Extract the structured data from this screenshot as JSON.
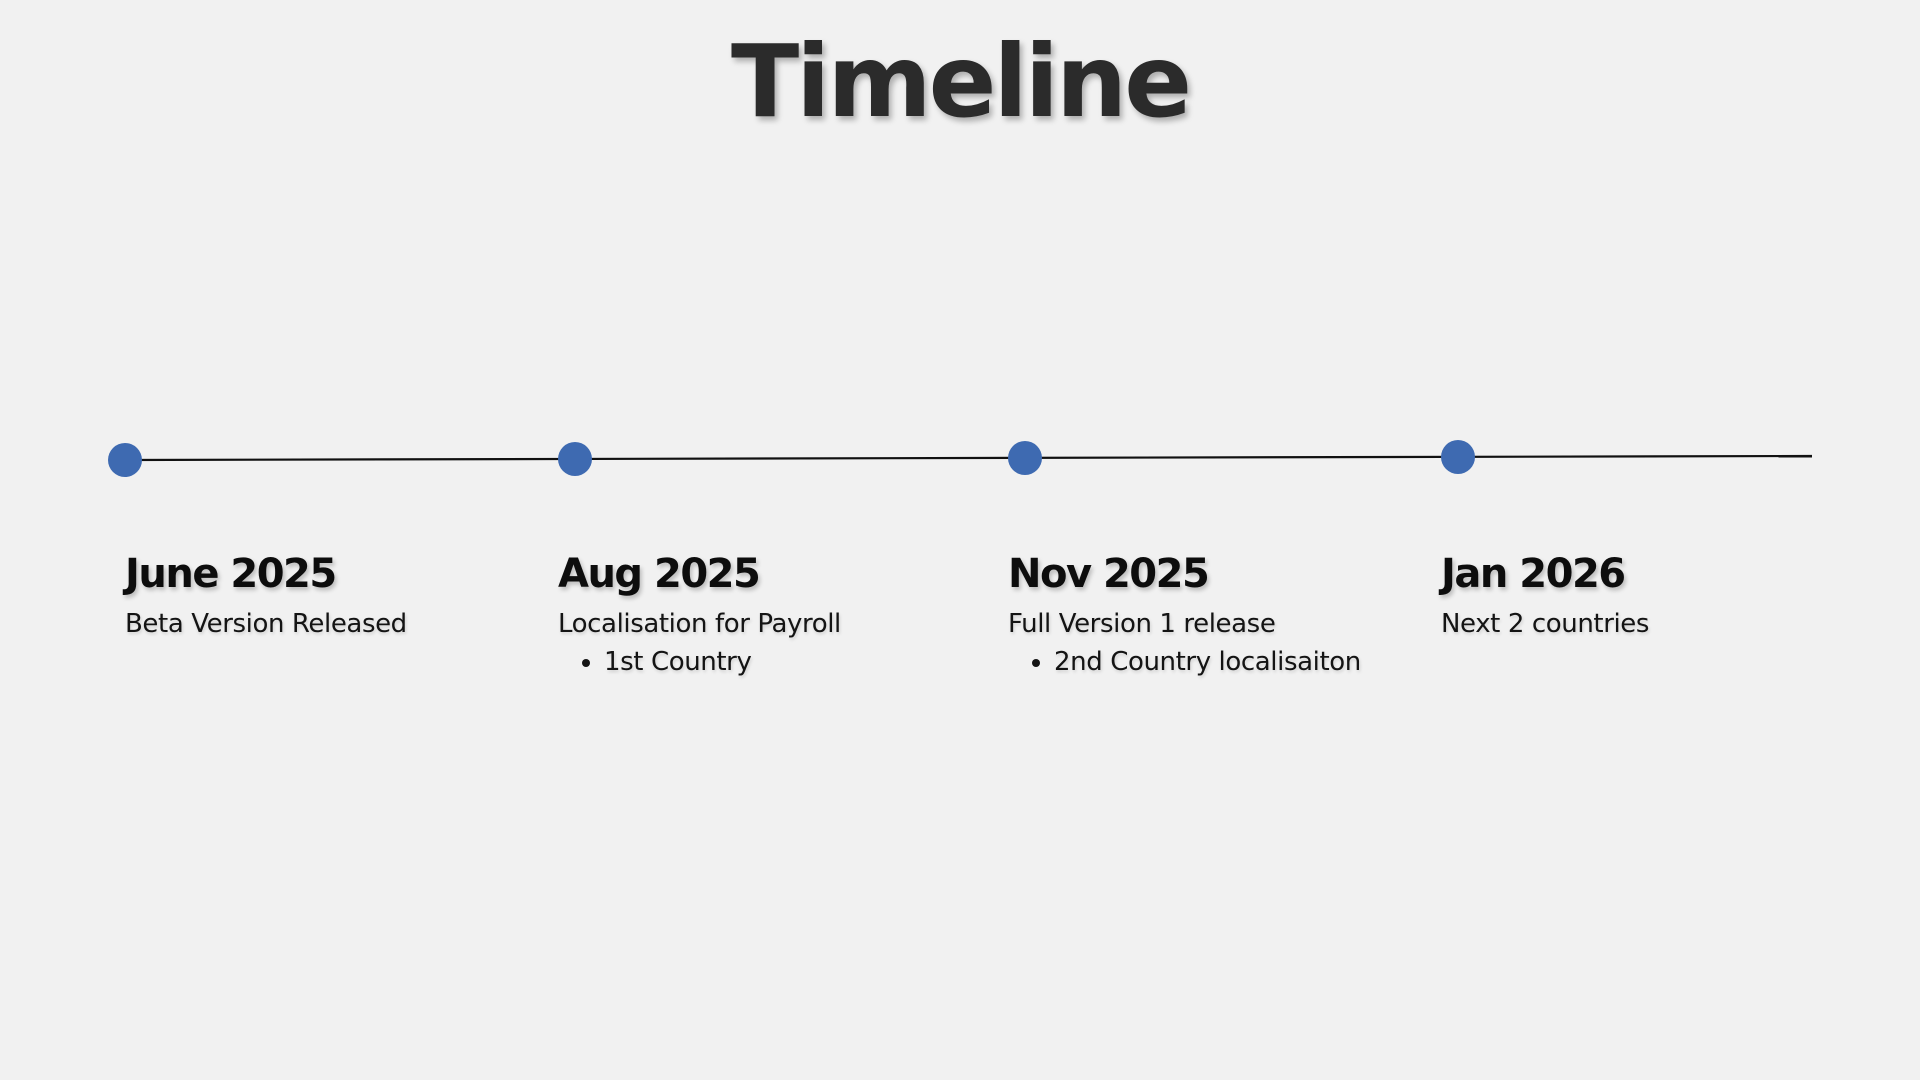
{
  "slide": {
    "title": "Timeline"
  },
  "timeline": {
    "line_color": "#111111",
    "dot_color": "#3e6ab1",
    "background_color": "#f1f1f1",
    "milestones": [
      {
        "date": "June 2025",
        "description": "Beta Version Released",
        "bullets": []
      },
      {
        "date": "Aug 2025",
        "description": "Localisation for Payroll",
        "bullets": [
          "1st Country"
        ]
      },
      {
        "date": "Nov 2025",
        "description": "Full Version 1 release",
        "bullets": [
          "2nd Country localisaiton"
        ]
      },
      {
        "date": "Jan 2026",
        "description": "Next 2 countries",
        "bullets": []
      }
    ]
  }
}
